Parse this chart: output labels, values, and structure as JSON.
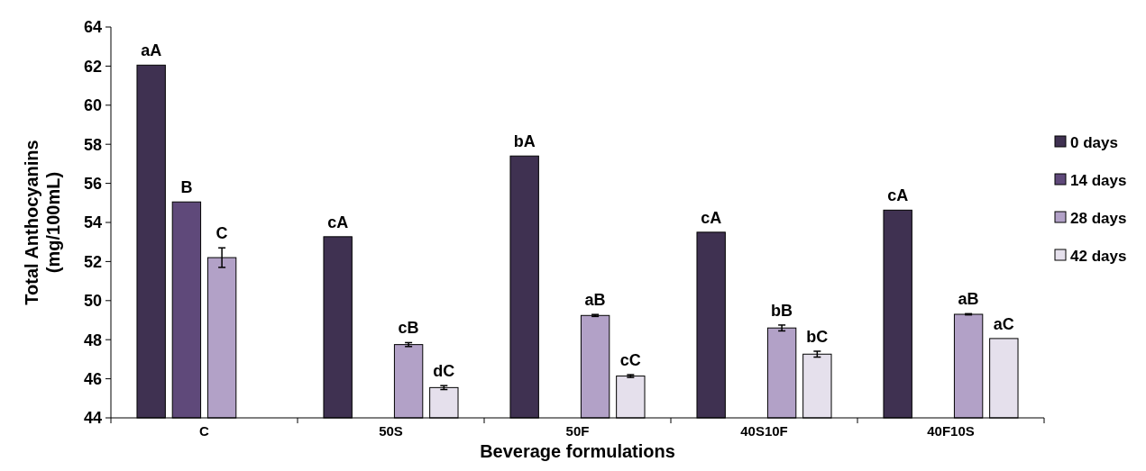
{
  "chart_data": {
    "type": "bar",
    "xlabel": "Beverage formulations",
    "ylabel": "Total Anthocyanins (mg/100mL)",
    "categories": [
      "C",
      "50S",
      "50F",
      "40S10F",
      "40F10S"
    ],
    "series": [
      {
        "name": "0 days",
        "color": "#3f3151",
        "values": [
          62.05,
          53.27,
          57.4,
          53.5,
          54.63
        ],
        "value_labels": [
          "aA",
          "cA",
          "bA",
          "cA",
          "cA"
        ]
      },
      {
        "name": "14 days",
        "color": "#5f497a",
        "values": [
          55.05,
          null,
          null,
          null,
          null
        ],
        "value_labels": [
          "B",
          null,
          null,
          null,
          null
        ]
      },
      {
        "name": "28 days",
        "color": "#b2a1c7",
        "values": [
          52.2,
          47.75,
          49.24,
          48.6,
          49.3
        ],
        "errors": [
          0.5,
          0.1,
          0.05,
          0.15,
          0.03
        ],
        "value_labels": [
          "C",
          "cB",
          "aB",
          "bB",
          "aB"
        ]
      },
      {
        "name": "42 days",
        "color": "#e5e0ec",
        "values": [
          null,
          45.55,
          46.14,
          47.26,
          48.06
        ],
        "errors": [
          null,
          0.1,
          0.07,
          0.15,
          null
        ],
        "value_labels": [
          null,
          "dC",
          "cC",
          "bC",
          "aC"
        ]
      }
    ],
    "ylim": [
      44,
      64
    ],
    "yticks": [
      44,
      46,
      48,
      50,
      52,
      54,
      56,
      58,
      60,
      62,
      64
    ],
    "grid": false,
    "legend": "right"
  }
}
